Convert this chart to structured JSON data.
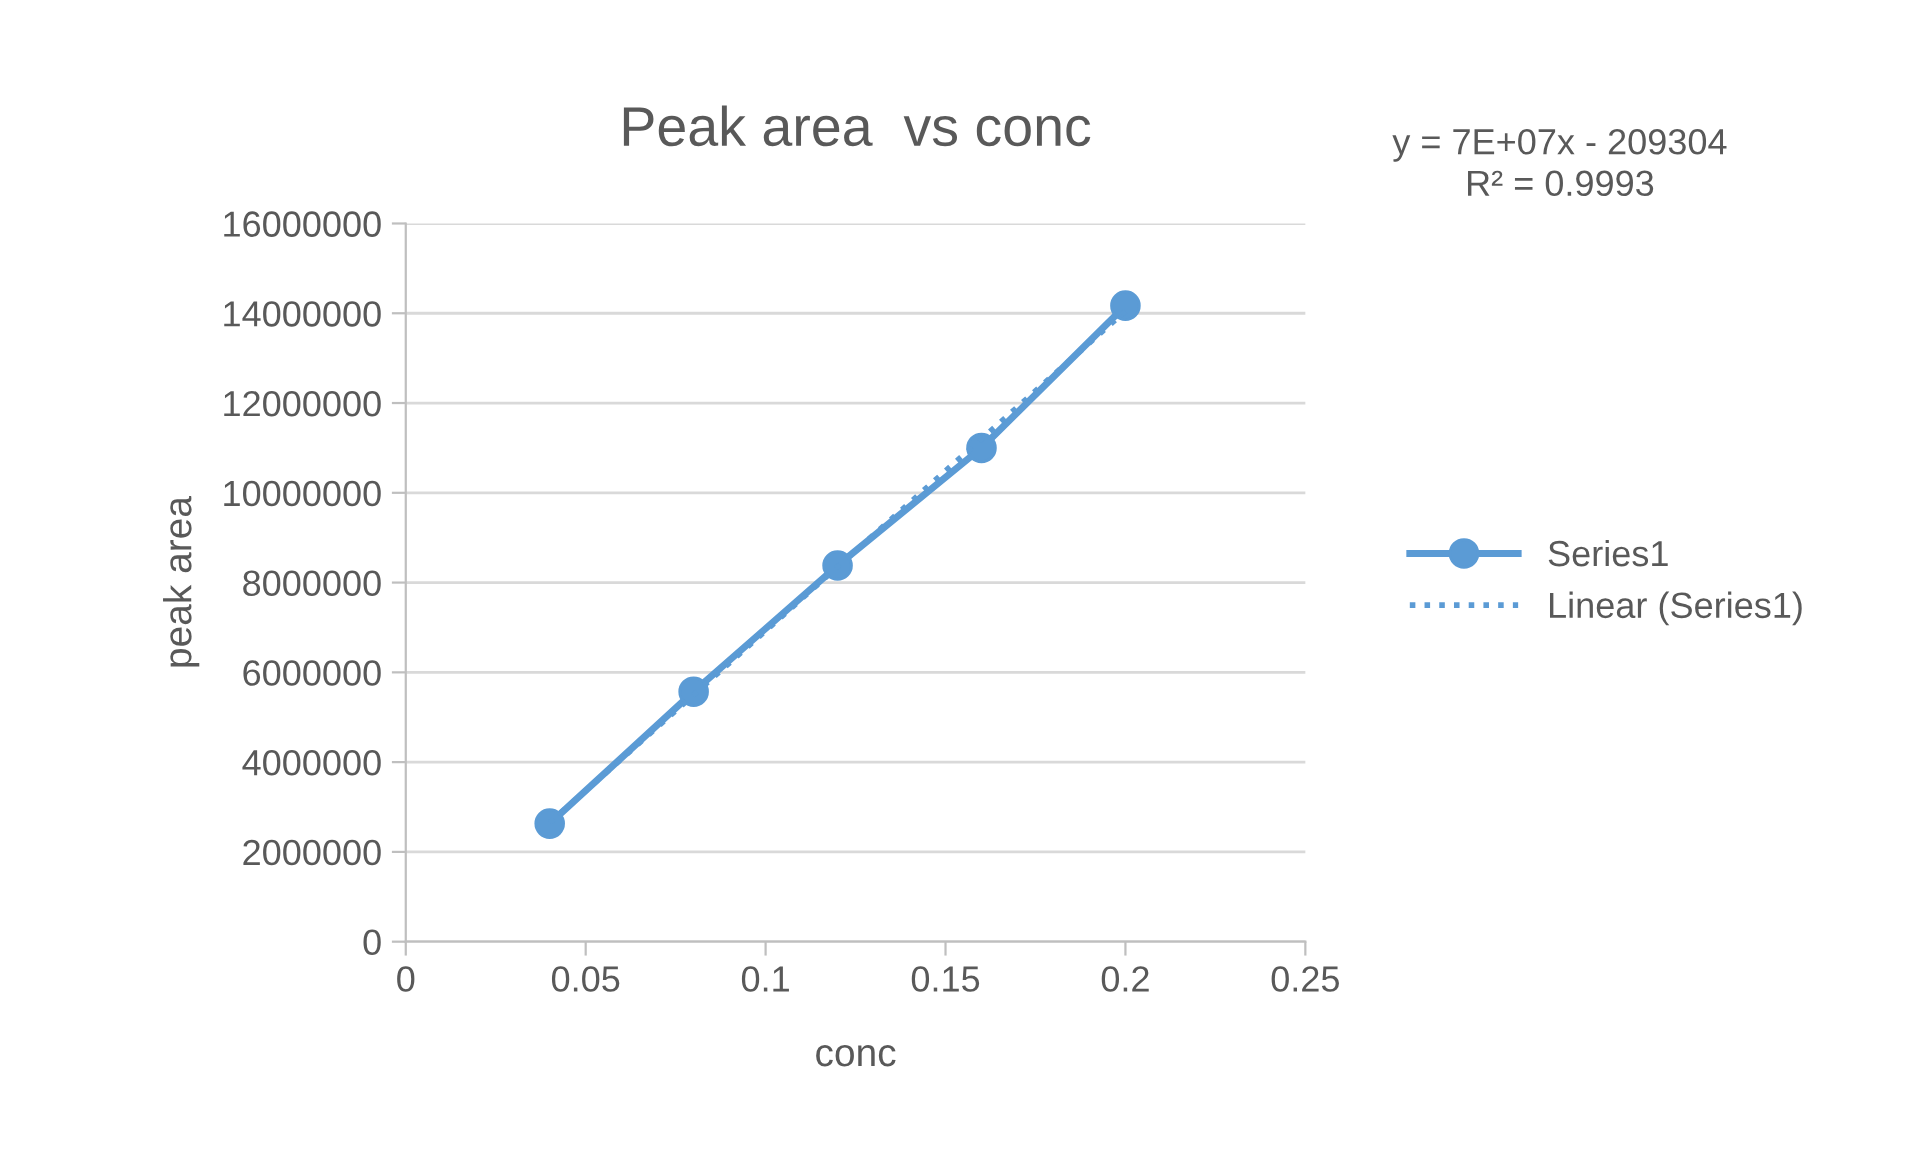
{
  "chart_data": {
    "type": "line",
    "title": "Peak area  vs conc",
    "xlabel": "conc",
    "ylabel": "peak area",
    "annotations": [
      "y = 7E+07x - 209304\nR² = 0.9993"
    ],
    "series": [
      {
        "name": "Series1",
        "color": "#5b9bd5",
        "x": [
          0.04,
          0.08,
          0.12,
          0.16,
          0.2
        ],
        "values": [
          2630000,
          5570000,
          8380000,
          11000000,
          14170000
        ],
        "marker": "circle",
        "line_style": "solid"
      },
      {
        "name": "Linear (Series1)",
        "color": "#5b9bd5",
        "x": [
          0.04,
          0.2
        ],
        "values": [
          2650000,
          14050000
        ],
        "marker": "none",
        "line_style": "dotted"
      }
    ],
    "xlim": [
      0,
      0.25
    ],
    "xticks": [
      0,
      0.05,
      0.1,
      0.15,
      0.2,
      0.25
    ],
    "ylim": [
      0,
      16000000
    ],
    "yticks": [
      0,
      2000000,
      4000000,
      6000000,
      8000000,
      10000000,
      12000000,
      14000000,
      16000000
    ],
    "grid": "y",
    "legend": "right"
  }
}
